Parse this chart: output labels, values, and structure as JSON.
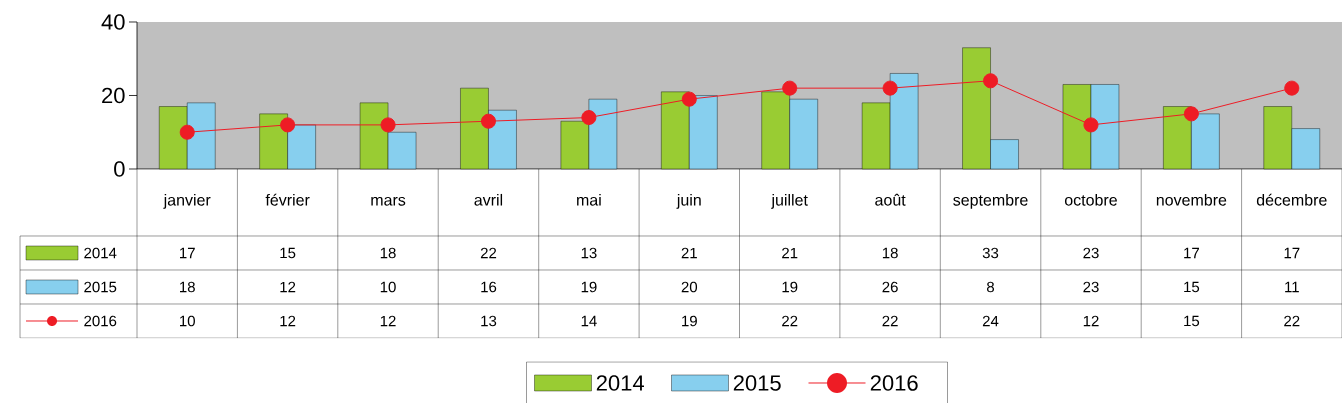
{
  "chart_data": {
    "type": "bar",
    "categories": [
      "janvier",
      "février",
      "mars",
      "avril",
      "mai",
      "juin",
      "juillet",
      "août",
      "septembre",
      "octobre",
      "novembre",
      "décembre"
    ],
    "series": [
      {
        "name": "2014",
        "color": "#99cc33",
        "values": [
          17,
          15,
          18,
          22,
          13,
          21,
          21,
          18,
          33,
          23,
          17,
          17
        ]
      },
      {
        "name": "2015",
        "color": "#87cfee",
        "values": [
          18,
          12,
          10,
          16,
          19,
          20,
          19,
          26,
          8,
          23,
          15,
          11
        ]
      },
      {
        "name": "2016",
        "type": "line",
        "color": "#ee1c25",
        "marker": "circle",
        "values": [
          10,
          12,
          12,
          13,
          14,
          19,
          22,
          22,
          24,
          12,
          15,
          22
        ]
      }
    ],
    "ylim": [
      0,
      40
    ],
    "yticks": [
      0,
      20,
      40
    ],
    "data_labels": true,
    "legend": "bottom",
    "grid": false
  }
}
